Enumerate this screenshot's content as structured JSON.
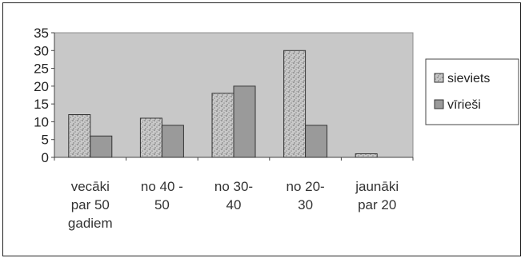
{
  "chart_data": {
    "type": "bar",
    "title": "",
    "xlabel": "",
    "ylabel": "",
    "ylim": [
      0,
      35
    ],
    "yticks": [
      "0",
      "5",
      "10",
      "15",
      "20",
      "25",
      "30",
      "35"
    ],
    "grid": false,
    "legend_position": "right",
    "categories": [
      [
        "vecāki",
        "par 50",
        "gadiem"
      ],
      [
        "no 40 -",
        "50"
      ],
      [
        "no 30-",
        "40"
      ],
      [
        "no 20-",
        "30"
      ],
      [
        "jaunāki",
        "par 20"
      ]
    ],
    "series": [
      {
        "name": "sieviets",
        "values": [
          12,
          11,
          18,
          30,
          1
        ],
        "color": "#bdbdbd",
        "pattern": "speckled"
      },
      {
        "name": "vīrieši",
        "values": [
          6,
          9,
          20,
          9,
          0
        ],
        "color": "#9a9a9a",
        "pattern": "solid"
      }
    ],
    "plot_background": "#c8c8c8",
    "border_color": "#222222"
  }
}
